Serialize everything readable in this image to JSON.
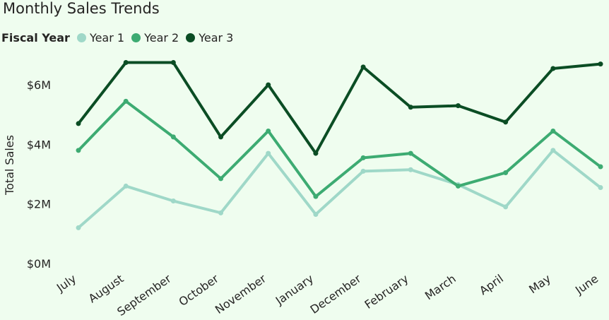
{
  "chart_data": {
    "type": "line",
    "title": "Monthly Sales Trends",
    "legend_title": "Fiscal Year",
    "legend_position": "top-left",
    "ylabel": "Total Sales",
    "xlabel": "",
    "ylim": [
      0,
      7000000
    ],
    "y_ticks": [
      0,
      2000000,
      4000000,
      6000000
    ],
    "y_tick_labels": [
      "$0M",
      "$2M",
      "$4M",
      "$6M"
    ],
    "grid": false,
    "categories": [
      "July",
      "August",
      "September",
      "October",
      "November",
      "January",
      "December",
      "February",
      "March",
      "April",
      "May",
      "June"
    ],
    "series": [
      {
        "name": "Year 1",
        "color": "#9fd8c8",
        "values": [
          1200000,
          2600000,
          2100000,
          1700000,
          3700000,
          1650000,
          3100000,
          3150000,
          2650000,
          1900000,
          3800000,
          2550000
        ]
      },
      {
        "name": "Year 2",
        "color": "#3dab72",
        "values": [
          3800000,
          5450000,
          4250000,
          2850000,
          4450000,
          2250000,
          3550000,
          3700000,
          2600000,
          3050000,
          4450000,
          3250000
        ]
      },
      {
        "name": "Year 3",
        "color": "#0b4d24",
        "values": [
          4700000,
          6750000,
          6750000,
          4250000,
          6000000,
          3700000,
          6600000,
          5250000,
          5300000,
          4750000,
          6550000,
          6700000
        ]
      }
    ]
  }
}
